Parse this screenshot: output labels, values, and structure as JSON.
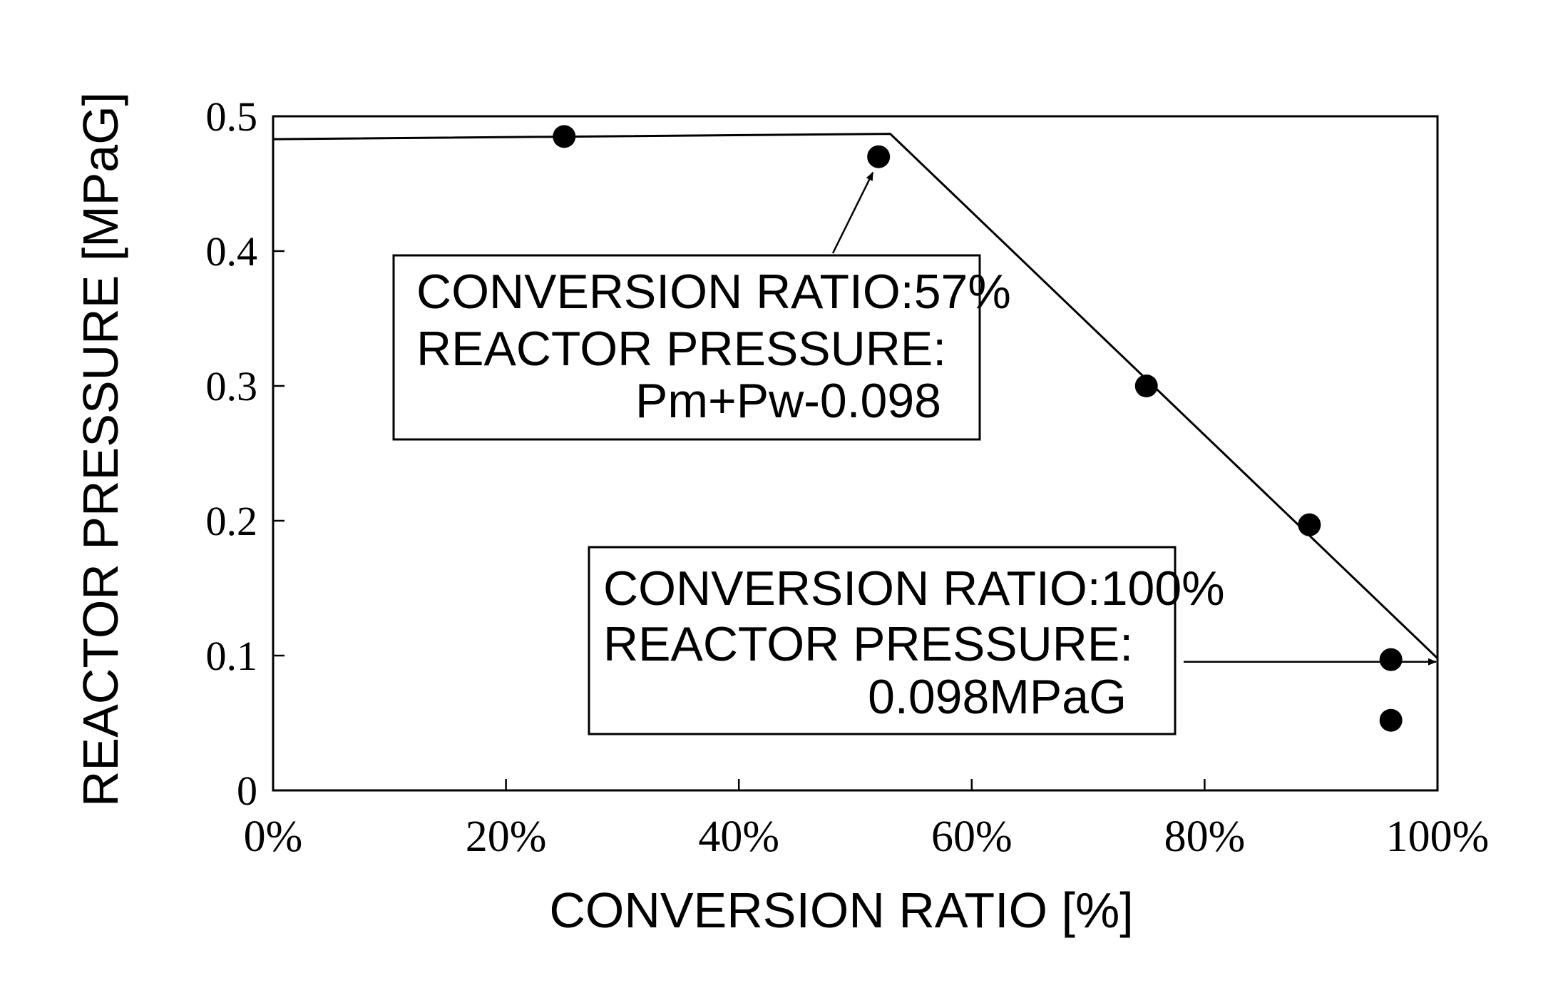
{
  "chart_data": {
    "type": "scatter",
    "xlabel": "CONVERSION RATIO [%]",
    "ylabel": "REACTOR PRESSURE [MPaG]",
    "xlim": [
      0,
      100
    ],
    "ylim": [
      0,
      0.5
    ],
    "x_ticks": [
      0,
      20,
      40,
      60,
      80,
      100
    ],
    "x_tick_labels": [
      "0%",
      "20%",
      "40%",
      "60%",
      "80%",
      "100%"
    ],
    "y_ticks": [
      0,
      0.1,
      0.2,
      0.3,
      0.4,
      0.5
    ],
    "y_tick_labels": [
      "0",
      "0.1",
      "0.2",
      "0.3",
      "0.4",
      "0.5"
    ],
    "grid": false,
    "series": [
      {
        "type": "scatter",
        "x": [
          25,
          52,
          75,
          89,
          96,
          96
        ],
        "y": [
          0.485,
          0.47,
          0.3,
          0.197,
          0.097,
          0.052
        ]
      },
      {
        "type": "line",
        "x": [
          0,
          53,
          100
        ],
        "y": [
          0.483,
          0.487,
          0.098
        ]
      }
    ],
    "annotations": [
      {
        "lines": [
          "CONVERSION RATIO:57%",
          "REACTOR PRESSURE:",
          "Pm+Pw-0.098"
        ],
        "arrow_to": {
          "x": 52,
          "y": 0.47
        }
      },
      {
        "lines": [
          "CONVERSION RATIO:100%",
          "REACTOR PRESSURE:",
          "0.098MPaG"
        ],
        "arrow_to": {
          "x": 100,
          "y": 0.098
        }
      }
    ]
  }
}
